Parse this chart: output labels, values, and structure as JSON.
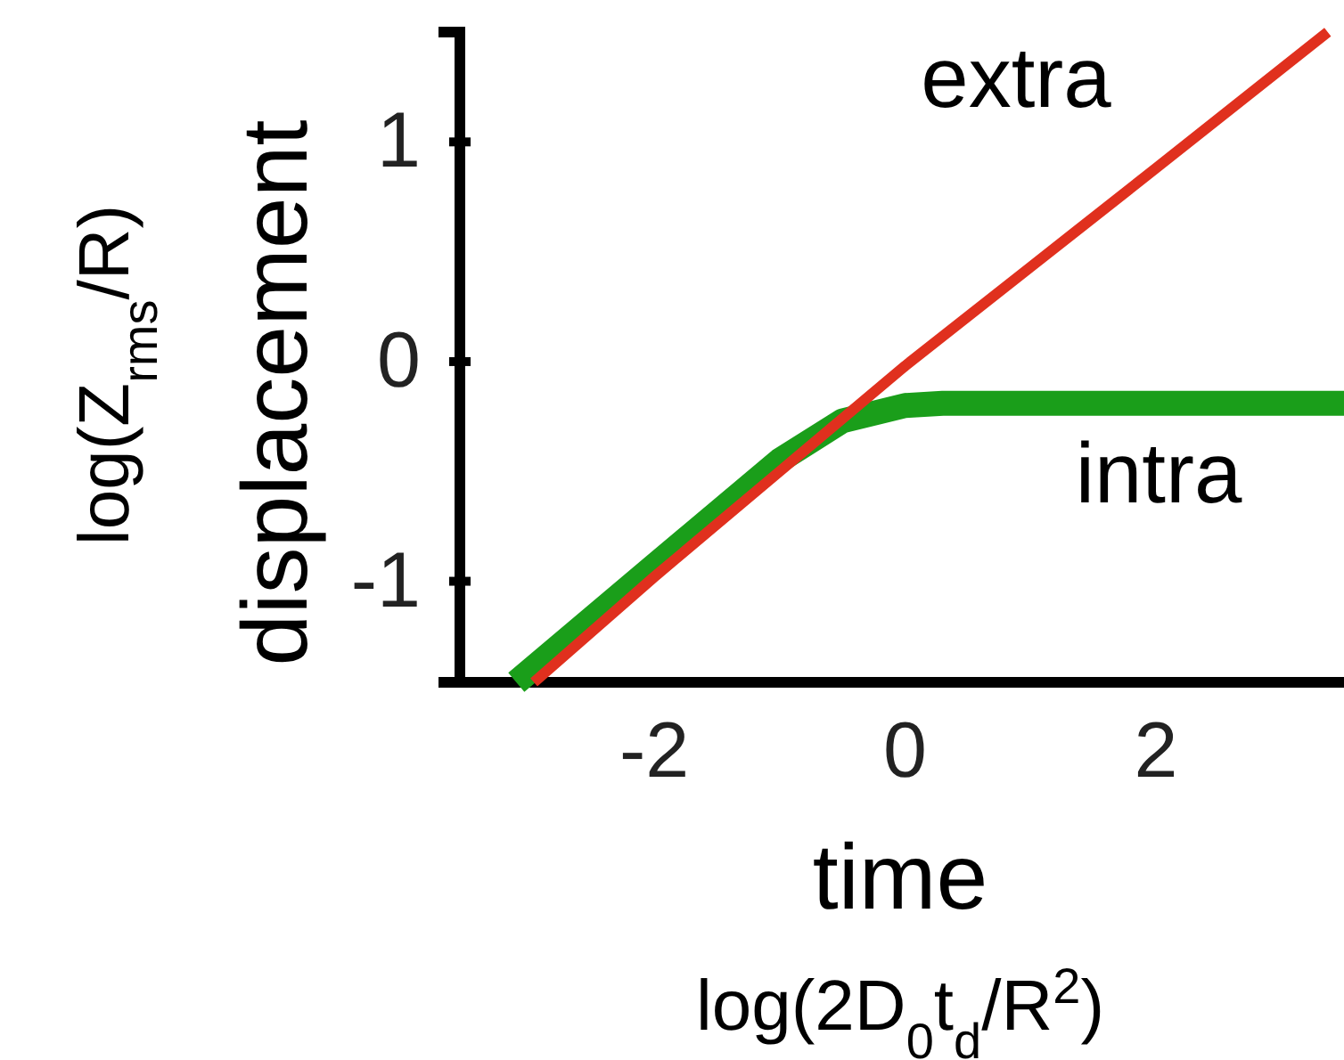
{
  "chart_data": {
    "type": "line",
    "xlabel": "time",
    "ylabel": "displacement",
    "annotations": [
      "log(2D$_{0}$t$_{d}$/R$^{2}$)",
      "log(Z$_{rms}$/R)"
    ],
    "xlim": [
      -3.55,
      3.5
    ],
    "ylim": [
      -1.46,
      1.5
    ],
    "xticks": [
      -2,
      0,
      2
    ],
    "yticks": [
      -1,
      0,
      1
    ],
    "grid": false,
    "legend": false,
    "marker": "none",
    "line_style": "solid",
    "series": [
      {
        "name": "intra",
        "color": "#1a9e1a",
        "x": [
          -3.1,
          -2,
          -1,
          -0.5,
          0,
          0.3,
          3.5
        ],
        "values": [
          -1.46,
          -0.93,
          -0.45,
          -0.27,
          -0.2,
          -0.19,
          -0.19
        ]
      },
      {
        "name": "extra",
        "color": "#e0301e",
        "x": [
          -2.96,
          -2,
          -1,
          0,
          1,
          2,
          3.37
        ],
        "values": [
          -1.46,
          -0.98,
          -0.5,
          -0.02,
          0.43,
          0.88,
          1.5
        ]
      }
    ]
  }
}
